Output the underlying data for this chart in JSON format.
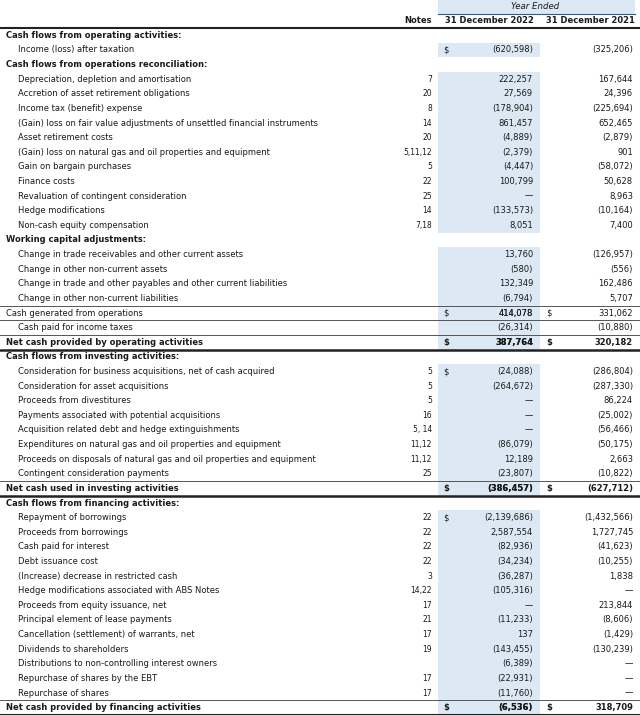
{
  "title": "Year Ended",
  "rows": [
    {
      "label": "Cash flows from operating activities:",
      "notes": "",
      "val2022": "",
      "val2021": "",
      "style": "section_header"
    },
    {
      "label": "Income (loss) after taxation",
      "notes": "",
      "val2022": "(620,598)",
      "val2021": "(325,206)",
      "style": "normal",
      "indent": 1,
      "dollar_sign": true
    },
    {
      "label": "Cash flows from operations reconciliation:",
      "notes": "",
      "val2022": "",
      "val2021": "",
      "style": "section_header"
    },
    {
      "label": "Depreciation, depletion and amortisation",
      "notes": "7",
      "val2022": "222,257",
      "val2021": "167,644",
      "style": "normal",
      "indent": 1
    },
    {
      "label": "Accretion of asset retirement obligations",
      "notes": "20",
      "val2022": "27,569",
      "val2021": "24,396",
      "style": "normal",
      "indent": 1
    },
    {
      "label": "Income tax (benefit) expense",
      "notes": "8",
      "val2022": "(178,904)",
      "val2021": "(225,694)",
      "style": "normal",
      "indent": 1
    },
    {
      "label": "(Gain) loss on fair value adjustments of unsettled financial instruments",
      "notes": "14",
      "val2022": "861,457",
      "val2021": "652,465",
      "style": "normal",
      "indent": 1
    },
    {
      "label": "Asset retirement costs",
      "notes": "20",
      "val2022": "(4,889)",
      "val2021": "(2,879)",
      "style": "normal",
      "indent": 1
    },
    {
      "label": "(Gain) loss on natural gas and oil properties and equipment",
      "notes": "5,11,12",
      "val2022": "(2,379)",
      "val2021": "901",
      "style": "normal",
      "indent": 1
    },
    {
      "label": "Gain on bargain purchases",
      "notes": "5",
      "val2022": "(4,447)",
      "val2021": "(58,072)",
      "style": "normal",
      "indent": 1
    },
    {
      "label": "Finance costs",
      "notes": "22",
      "val2022": "100,799",
      "val2021": "50,628",
      "style": "normal",
      "indent": 1
    },
    {
      "label": "Revaluation of contingent consideration",
      "notes": "25",
      "val2022": "—",
      "val2021": "8,963",
      "style": "normal",
      "indent": 1
    },
    {
      "label": "Hedge modifications",
      "notes": "14",
      "val2022": "(133,573)",
      "val2021": "(10,164)",
      "style": "normal",
      "indent": 1
    },
    {
      "label": "Non-cash equity compensation",
      "notes": "7,18",
      "val2022": "8,051",
      "val2021": "7,400",
      "style": "normal",
      "indent": 1
    },
    {
      "label": "Working capital adjustments:",
      "notes": "",
      "val2022": "",
      "val2021": "",
      "style": "section_header"
    },
    {
      "label": "Change in trade receivables and other current assets",
      "notes": "",
      "val2022": "13,760",
      "val2021": "(126,957)",
      "style": "normal",
      "indent": 1
    },
    {
      "label": "Change in other non-current assets",
      "notes": "",
      "val2022": "(580)",
      "val2021": "(556)",
      "style": "normal",
      "indent": 1
    },
    {
      "label": "Change in trade and other payables and other current liabilities",
      "notes": "",
      "val2022": "132,349",
      "val2021": "162,486",
      "style": "normal",
      "indent": 1
    },
    {
      "label": "Change in other non-current liabilities",
      "notes": "",
      "val2022": "(6,794)",
      "val2021": "5,707",
      "style": "normal",
      "indent": 1
    },
    {
      "label": "Cash generated from operations",
      "notes": "",
      "val2022": "414,078",
      "val2021": "331,062",
      "style": "subtotal",
      "dollar_sign": true
    },
    {
      "label": "Cash paid for income taxes",
      "notes": "",
      "val2022": "(26,314)",
      "val2021": "(10,880)",
      "style": "normal",
      "indent": 1
    },
    {
      "label": "Net cash provided by operating activities",
      "notes": "",
      "val2022": "387,764",
      "val2021": "320,182",
      "style": "bold_total",
      "dollar_sign": true
    },
    {
      "label": "Cash flows from investing activities:",
      "notes": "",
      "val2022": "",
      "val2021": "",
      "style": "section_header"
    },
    {
      "label": "Consideration for business acquisitions, net of cash acquired",
      "notes": "5",
      "val2022": "(24,088)",
      "val2021": "(286,804)",
      "style": "normal",
      "indent": 1,
      "dollar_sign": true
    },
    {
      "label": "Consideration for asset acquisitions",
      "notes": "5",
      "val2022": "(264,672)",
      "val2021": "(287,330)",
      "style": "normal",
      "indent": 1
    },
    {
      "label": "Proceeds from divestitures",
      "notes": "5",
      "val2022": "—",
      "val2021": "86,224",
      "style": "normal",
      "indent": 1
    },
    {
      "label": "Payments associated with potential acquisitions",
      "notes": "16",
      "val2022": "—",
      "val2021": "(25,002)",
      "style": "normal",
      "indent": 1
    },
    {
      "label": "Acquisition related debt and hedge extinguishments",
      "notes": "5, 14",
      "val2022": "—",
      "val2021": "(56,466)",
      "style": "normal",
      "indent": 1
    },
    {
      "label": "Expenditures on natural gas and oil properties and equipment",
      "notes": "11,12",
      "val2022": "(86,079)",
      "val2021": "(50,175)",
      "style": "normal",
      "indent": 1
    },
    {
      "label": "Proceeds on disposals of natural gas and oil properties and equipment",
      "notes": "11,12",
      "val2022": "12,189",
      "val2021": "2,663",
      "style": "normal",
      "indent": 1
    },
    {
      "label": "Contingent consideration payments",
      "notes": "25",
      "val2022": "(23,807)",
      "val2021": "(10,822)",
      "style": "normal",
      "indent": 1
    },
    {
      "label": "Net cash used in investing activities",
      "notes": "",
      "val2022": "(386,457)",
      "val2021": "(627,712)",
      "style": "bold_total",
      "dollar_sign": true
    },
    {
      "label": "Cash flows from financing activities:",
      "notes": "",
      "val2022": "",
      "val2021": "",
      "style": "section_header"
    },
    {
      "label": "Repayment of borrowings",
      "notes": "22",
      "val2022": "(2,139,686)",
      "val2021": "(1,432,566)",
      "style": "normal",
      "indent": 1,
      "dollar_sign": true
    },
    {
      "label": "Proceeds from borrowings",
      "notes": "22",
      "val2022": "2,587,554",
      "val2021": "1,727,745",
      "style": "normal",
      "indent": 1
    },
    {
      "label": "Cash paid for interest",
      "notes": "22",
      "val2022": "(82,936)",
      "val2021": "(41,623)",
      "style": "normal",
      "indent": 1
    },
    {
      "label": "Debt issuance cost",
      "notes": "22",
      "val2022": "(34,234)",
      "val2021": "(10,255)",
      "style": "normal",
      "indent": 1
    },
    {
      "label": "(Increase) decrease in restricted cash",
      "notes": "3",
      "val2022": "(36,287)",
      "val2021": "1,838",
      "style": "normal",
      "indent": 1
    },
    {
      "label": "Hedge modifications associated with ABS Notes",
      "notes": "14,22",
      "val2022": "(105,316)",
      "val2021": "—",
      "style": "normal",
      "indent": 1
    },
    {
      "label": "Proceeds from equity issuance, net",
      "notes": "17",
      "val2022": "—",
      "val2021": "213,844",
      "style": "normal",
      "indent": 1
    },
    {
      "label": "Principal element of lease payments",
      "notes": "21",
      "val2022": "(11,233)",
      "val2021": "(8,606)",
      "style": "normal",
      "indent": 1
    },
    {
      "label": "Cancellation (settlement) of warrants, net",
      "notes": "17",
      "val2022": "137",
      "val2021": "(1,429)",
      "style": "normal",
      "indent": 1
    },
    {
      "label": "Dividends to shareholders",
      "notes": "19",
      "val2022": "(143,455)",
      "val2021": "(130,239)",
      "style": "normal",
      "indent": 1
    },
    {
      "label": "Distributions to non-controlling interest owners",
      "notes": "",
      "val2022": "(6,389)",
      "val2021": "—",
      "style": "normal",
      "indent": 1
    },
    {
      "label": "Repurchase of shares by the EBT",
      "notes": "17",
      "val2022": "(22,931)",
      "val2021": "—",
      "style": "normal",
      "indent": 1
    },
    {
      "label": "Repurchase of shares",
      "notes": "17",
      "val2022": "(11,760)",
      "val2021": "—",
      "style": "normal",
      "indent": 1
    },
    {
      "label": "Net cash provided by financing activities",
      "notes": "",
      "val2022": "(6,536)",
      "val2021": "318,709",
      "style": "bold_total",
      "dollar_sign": true
    }
  ],
  "bg_color": "#ffffff",
  "col2022_bg": "#dce9f5",
  "header_underline_color": "#2c5f8a",
  "line_color": "#555555",
  "bold_line_color": "#222222",
  "text_color": "#1a1a1a"
}
